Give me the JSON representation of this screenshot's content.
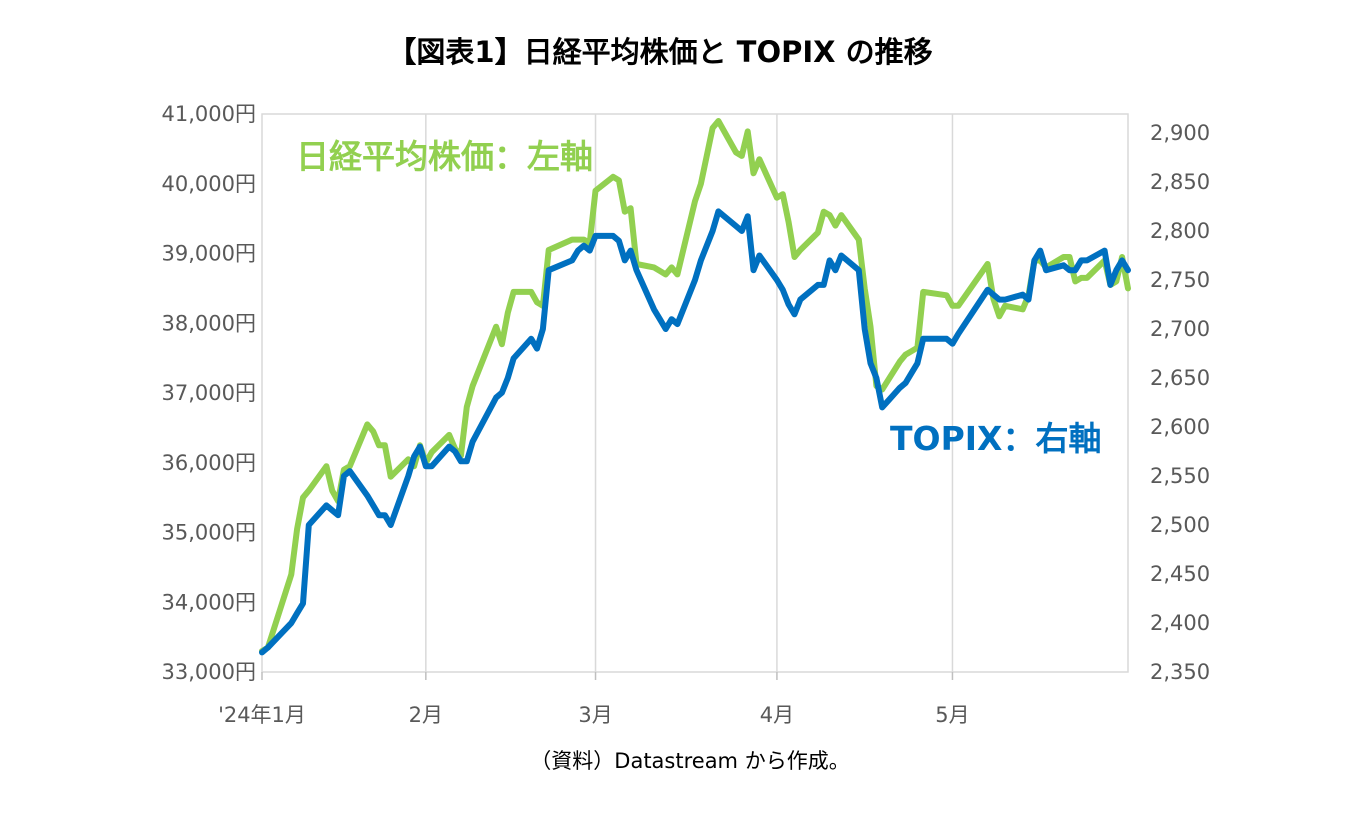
{
  "chart_data": {
    "type": "line",
    "title": "【図表1】日経平均株価と TOPIX の推移",
    "source": "（資料）Datastream から作成。",
    "x_axis": {
      "ticks": [
        "'24年1月",
        "2月",
        "3月",
        "4月",
        "5月"
      ],
      "range": [
        "2024-01-04",
        "2024-05-31"
      ]
    },
    "y_left": {
      "ticks": [
        "41,000円",
        "40,000円",
        "39,000円",
        "38,000円",
        "37,000円",
        "36,000円",
        "35,000円",
        "34,000円",
        "33,000円"
      ],
      "range": [
        33000,
        41000
      ],
      "unit": "円"
    },
    "y_right": {
      "ticks": [
        "2,900",
        "2,850",
        "2,800",
        "2,750",
        "2,700",
        "2,650",
        "2,600",
        "2,550",
        "2,500",
        "2,450",
        "2,400",
        "2,350"
      ],
      "range": [
        2350,
        2900
      ]
    },
    "grid": "vertical",
    "series": [
      {
        "name": "日経平均株価：左軸",
        "axis": "left",
        "color": "#92D050",
        "x": [
          "2024-01-04",
          "2024-01-05",
          "2024-01-09",
          "2024-01-10",
          "2024-01-11",
          "2024-01-12",
          "2024-01-15",
          "2024-01-16",
          "2024-01-17",
          "2024-01-18",
          "2024-01-19",
          "2024-01-22",
          "2024-01-23",
          "2024-01-24",
          "2024-01-25",
          "2024-01-26",
          "2024-01-29",
          "2024-01-30",
          "2024-01-31",
          "2024-02-01",
          "2024-02-02",
          "2024-02-05",
          "2024-02-06",
          "2024-02-07",
          "2024-02-08",
          "2024-02-09",
          "2024-02-13",
          "2024-02-14",
          "2024-02-15",
          "2024-02-16",
          "2024-02-19",
          "2024-02-20",
          "2024-02-21",
          "2024-02-22",
          "2024-02-26",
          "2024-02-27",
          "2024-02-28",
          "2024-02-29",
          "2024-03-01",
          "2024-03-04",
          "2024-03-05",
          "2024-03-06",
          "2024-03-07",
          "2024-03-08",
          "2024-03-11",
          "2024-03-12",
          "2024-03-13",
          "2024-03-14",
          "2024-03-15",
          "2024-03-18",
          "2024-03-19",
          "2024-03-21",
          "2024-03-22",
          "2024-03-25",
          "2024-03-26",
          "2024-03-27",
          "2024-03-28",
          "2024-03-29",
          "2024-04-01",
          "2024-04-02",
          "2024-04-03",
          "2024-04-04",
          "2024-04-05",
          "2024-04-08",
          "2024-04-09",
          "2024-04-10",
          "2024-04-11",
          "2024-04-12",
          "2024-04-15",
          "2024-04-16",
          "2024-04-17",
          "2024-04-18",
          "2024-04-19",
          "2024-04-22",
          "2024-04-23",
          "2024-04-24",
          "2024-04-25",
          "2024-04-26",
          "2024-04-30",
          "2024-05-01",
          "2024-05-02",
          "2024-05-07",
          "2024-05-08",
          "2024-05-09",
          "2024-05-10",
          "2024-05-13",
          "2024-05-14",
          "2024-05-15",
          "2024-05-16",
          "2024-05-17",
          "2024-05-20",
          "2024-05-21",
          "2024-05-22",
          "2024-05-23",
          "2024-05-24",
          "2024-05-27",
          "2024-05-28",
          "2024-05-29",
          "2024-05-30",
          "2024-05-31"
        ],
        "values": [
          33300,
          33350,
          34400,
          35050,
          35500,
          35600,
          35950,
          35600,
          35450,
          35900,
          35950,
          36550,
          36450,
          36250,
          36250,
          35800,
          36050,
          35950,
          36250,
          36000,
          36150,
          36400,
          36200,
          36100,
          36800,
          37100,
          37950,
          37700,
          38150,
          38450,
          38450,
          38300,
          38250,
          39050,
          39200,
          39200,
          39200,
          39150,
          39900,
          40100,
          40050,
          39600,
          39650,
          38850,
          38800,
          38750,
          38700,
          38800,
          38700,
          39750,
          40000,
          40800,
          40900,
          40450,
          40400,
          40750,
          40150,
          40350,
          39800,
          39850,
          39450,
          38950,
          39050,
          39300,
          39600,
          39550,
          39400,
          39550,
          39200,
          38500,
          37950,
          37100,
          37050,
          37450,
          37550,
          37600,
          37650,
          38450,
          38400,
          38250,
          38250,
          38850,
          38350,
          38100,
          38250,
          38200,
          38400,
          38900,
          38900,
          38800,
          38950,
          38950,
          38600,
          38650,
          38650,
          38900,
          38550,
          38600,
          38950,
          38500
        ]
      },
      {
        "name": "TOPIX：右軸",
        "axis": "right",
        "color": "#0070C0",
        "x": [
          "2024-01-04",
          "2024-01-05",
          "2024-01-09",
          "2024-01-10",
          "2024-01-11",
          "2024-01-12",
          "2024-01-15",
          "2024-01-16",
          "2024-01-17",
          "2024-01-18",
          "2024-01-19",
          "2024-01-22",
          "2024-01-23",
          "2024-01-24",
          "2024-01-25",
          "2024-01-26",
          "2024-01-29",
          "2024-01-30",
          "2024-01-31",
          "2024-02-01",
          "2024-02-02",
          "2024-02-05",
          "2024-02-06",
          "2024-02-07",
          "2024-02-08",
          "2024-02-09",
          "2024-02-13",
          "2024-02-14",
          "2024-02-15",
          "2024-02-16",
          "2024-02-19",
          "2024-02-20",
          "2024-02-21",
          "2024-02-22",
          "2024-02-26",
          "2024-02-27",
          "2024-02-28",
          "2024-02-29",
          "2024-03-01",
          "2024-03-04",
          "2024-03-05",
          "2024-03-06",
          "2024-03-07",
          "2024-03-08",
          "2024-03-11",
          "2024-03-12",
          "2024-03-13",
          "2024-03-14",
          "2024-03-15",
          "2024-03-18",
          "2024-03-19",
          "2024-03-21",
          "2024-03-22",
          "2024-03-25",
          "2024-03-26",
          "2024-03-27",
          "2024-03-28",
          "2024-03-29",
          "2024-04-01",
          "2024-04-02",
          "2024-04-03",
          "2024-04-04",
          "2024-04-05",
          "2024-04-08",
          "2024-04-09",
          "2024-04-10",
          "2024-04-11",
          "2024-04-12",
          "2024-04-15",
          "2024-04-16",
          "2024-04-17",
          "2024-04-18",
          "2024-04-19",
          "2024-04-22",
          "2024-04-23",
          "2024-04-24",
          "2024-04-25",
          "2024-04-26",
          "2024-04-30",
          "2024-05-01",
          "2024-05-02",
          "2024-05-07",
          "2024-05-08",
          "2024-05-09",
          "2024-05-10",
          "2024-05-13",
          "2024-05-14",
          "2024-05-15",
          "2024-05-16",
          "2024-05-17",
          "2024-05-20",
          "2024-05-21",
          "2024-05-22",
          "2024-05-23",
          "2024-05-24",
          "2024-05-27",
          "2024-05-28",
          "2024-05-29",
          "2024-05-30",
          "2024-05-31"
        ],
        "values": [
          2370,
          2375,
          2400,
          2410,
          2420,
          2500,
          2520,
          2515,
          2510,
          2550,
          2555,
          2530,
          2520,
          2510,
          2510,
          2500,
          2550,
          2570,
          2580,
          2560,
          2560,
          2580,
          2575,
          2565,
          2565,
          2585,
          2630,
          2635,
          2650,
          2670,
          2690,
          2680,
          2700,
          2760,
          2770,
          2780,
          2785,
          2780,
          2795,
          2795,
          2790,
          2770,
          2780,
          2760,
          2720,
          2710,
          2700,
          2710,
          2705,
          2750,
          2770,
          2800,
          2820,
          2805,
          2800,
          2815,
          2760,
          2775,
          2750,
          2740,
          2725,
          2715,
          2730,
          2745,
          2745,
          2770,
          2760,
          2775,
          2760,
          2700,
          2665,
          2650,
          2620,
          2640,
          2645,
          2655,
          2665,
          2690,
          2690,
          2685,
          2695,
          2740,
          2735,
          2730,
          2730,
          2735,
          2730,
          2770,
          2780,
          2760,
          2765,
          2760,
          2760,
          2770,
          2770,
          2780,
          2745,
          2760,
          2770,
          2760
        ]
      }
    ],
    "annotations": [
      {
        "text": "日経平均株価：左軸",
        "color": "#92D050"
      },
      {
        "text": "TOPIX：右軸",
        "color": "#0070C0"
      }
    ]
  }
}
